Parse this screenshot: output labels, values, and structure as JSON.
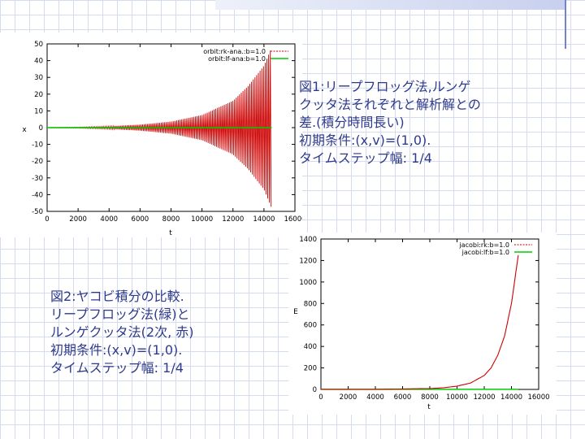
{
  "captions": {
    "fig1": "図1:リープフロッグ法,ルンゲ\nクッタ法それぞれと解析解との\n差.(積分時間長い)\n初期条件:(x,v)=(1,0).\nタイムステップ幅: 1/4",
    "fig2": "図2:ヤコビ積分の比較.\nリープフロッグ法(緑)と\nルンゲクッタ法(2次, 赤)\n初期条件:(x,v)=(1,0).\nタイムステップ幅: 1/4"
  },
  "chart_data": [
    {
      "type": "line",
      "xlabel": "t",
      "ylabel": "x",
      "xlim": [
        0,
        16000
      ],
      "ylim": [
        -50,
        50
      ],
      "xticks": [
        0,
        2000,
        4000,
        6000,
        8000,
        10000,
        12000,
        14000,
        16000
      ],
      "yticks": [
        -50,
        -40,
        -30,
        -20,
        -10,
        0,
        10,
        20,
        30,
        40,
        50
      ],
      "grid": false,
      "legend_position": "top-right",
      "series": [
        {
          "name": "orbit:rk-ana.:b=1.0",
          "color": "#cc0000",
          "style": "oscillating envelope",
          "x": [
            0,
            2000,
            4000,
            6000,
            8000,
            10000,
            12000,
            13000,
            14000,
            14500
          ],
          "envelope": [
            0.1,
            0.3,
            0.8,
            1.8,
            3.6,
            7.5,
            16,
            25,
            37,
            48
          ]
        },
        {
          "name": "orbit:lf-ana:b=1.0",
          "color": "#00cc00",
          "style": "line",
          "x": [
            0,
            14500
          ],
          "y": [
            0,
            0
          ]
        }
      ]
    },
    {
      "type": "line",
      "xlabel": "t",
      "ylabel": "E",
      "xlim": [
        0,
        16000
      ],
      "ylim": [
        0,
        1400
      ],
      "xticks": [
        0,
        2000,
        4000,
        6000,
        8000,
        10000,
        12000,
        14000,
        16000
      ],
      "yticks": [
        0,
        200,
        400,
        600,
        800,
        1000,
        1200,
        1400
      ],
      "grid": false,
      "legend_position": "top-right",
      "series": [
        {
          "name": "jacobi:rk:b=1.0",
          "color": "#cc0000",
          "x": [
            0,
            4000,
            8000,
            9000,
            10000,
            11000,
            12000,
            12500,
            13000,
            13500,
            14000,
            14500
          ],
          "y": [
            0.5,
            1,
            8,
            15,
            30,
            60,
            130,
            200,
            320,
            500,
            800,
            1250
          ]
        },
        {
          "name": "jacobi:lf:b=1.0",
          "color": "#00cc00",
          "x": [
            0,
            14500
          ],
          "y": [
            0.5,
            0.5
          ]
        }
      ]
    }
  ]
}
